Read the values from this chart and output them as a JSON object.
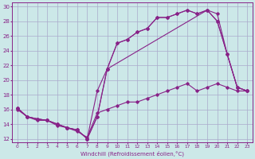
{
  "xlabel": "Windchill (Refroidissement éolien,°C)",
  "bg_color": "#cce8e8",
  "grid_color": "#aaaacc",
  "line_color": "#882288",
  "xlim": [
    -0.5,
    23.5
  ],
  "ylim": [
    11.5,
    30.5
  ],
  "xticks": [
    0,
    1,
    2,
    3,
    4,
    5,
    6,
    7,
    8,
    9,
    10,
    11,
    12,
    13,
    14,
    15,
    16,
    17,
    18,
    19,
    20,
    21,
    22,
    23
  ],
  "yticks": [
    12,
    14,
    16,
    18,
    20,
    22,
    24,
    26,
    28,
    30
  ],
  "series": [
    {
      "x": [
        0,
        1,
        2,
        3,
        4,
        5,
        6,
        7,
        8,
        9,
        19,
        20,
        21,
        22,
        23
      ],
      "y": [
        16.2,
        15.0,
        14.7,
        14.5,
        14.0,
        13.5,
        13.2,
        12.0,
        15.0,
        21.5,
        29.5,
        29.0,
        23.5,
        19.0,
        18.5
      ]
    },
    {
      "x": [
        0,
        1,
        2,
        3,
        4,
        5,
        6,
        7,
        8,
        9,
        10,
        11,
        12,
        13,
        14,
        15,
        16,
        17,
        18,
        19,
        20,
        21,
        22,
        23
      ],
      "y": [
        16.2,
        15.0,
        14.7,
        14.5,
        14.0,
        13.5,
        13.2,
        12.0,
        15.0,
        21.5,
        25.0,
        25.5,
        26.5,
        27.0,
        28.5,
        28.5,
        29.0,
        29.5,
        29.0,
        29.5,
        28.0,
        23.5,
        19.0,
        18.5
      ]
    },
    {
      "x": [
        0,
        1,
        2,
        3,
        4,
        5,
        6,
        7,
        8,
        9,
        10,
        11,
        12,
        13,
        14,
        15,
        16,
        17,
        18,
        19,
        20,
        21,
        22,
        23
      ],
      "y": [
        16.2,
        15.0,
        14.7,
        14.5,
        14.0,
        13.5,
        13.2,
        12.0,
        18.5,
        21.5,
        25.0,
        25.5,
        26.5,
        27.0,
        28.5,
        28.5,
        29.0,
        29.5,
        29.0,
        29.5,
        28.0,
        23.5,
        19.0,
        18.5
      ]
    },
    {
      "x": [
        0,
        1,
        2,
        3,
        4,
        5,
        6,
        7,
        8,
        9,
        10,
        11,
        12,
        13,
        14,
        15,
        16,
        17,
        18,
        19,
        20,
        21,
        22,
        23
      ],
      "y": [
        16.0,
        15.0,
        14.5,
        14.5,
        13.8,
        13.5,
        13.0,
        12.2,
        15.5,
        16.0,
        16.5,
        17.0,
        17.0,
        17.5,
        18.0,
        18.5,
        19.0,
        19.5,
        18.5,
        19.0,
        19.5,
        19.0,
        18.5,
        18.5
      ]
    }
  ]
}
